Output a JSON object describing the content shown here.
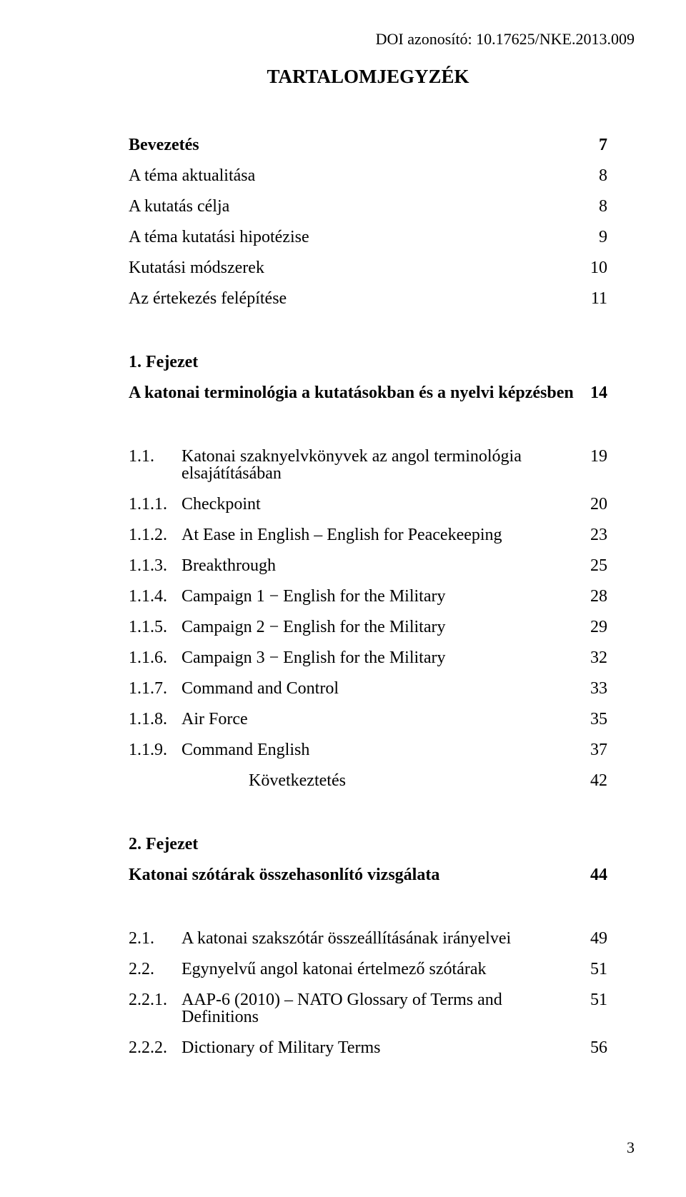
{
  "doi": "DOI azonosító: 10.17625/NKE.2013.009",
  "title": "TARTALOMJEGYZÉK",
  "footer_page": "3",
  "rows": [
    {
      "num": "",
      "label": "Bevezetés",
      "page": "7",
      "bold": true
    },
    {
      "num": "",
      "label": "A téma aktualitása",
      "page": "8"
    },
    {
      "num": "",
      "label": "A kutatás célja",
      "page": "8"
    },
    {
      "num": "",
      "label": "A téma kutatási hipotézise",
      "page": "9"
    },
    {
      "num": "",
      "label": "Kutatási módszerek",
      "page": "10"
    },
    {
      "num": "",
      "label": "Az értekezés felépítése",
      "page": "11"
    },
    {
      "spacer": "m"
    },
    {
      "num": "",
      "label": "1. Fejezet",
      "page": "",
      "bold": true
    },
    {
      "num": "",
      "label": "A katonai terminológia a kutatásokban és a nyelvi képzésben",
      "page": "14",
      "bold": true
    },
    {
      "spacer": "m"
    },
    {
      "num": "1.1.",
      "label": "Katonai szaknyelvkönyvek az angol terminológia elsajátításában",
      "page": "19"
    },
    {
      "num": "1.1.1.",
      "label": "Checkpoint",
      "page": "20"
    },
    {
      "num": "1.1.2.",
      "label": "At Ease in English – English for Peacekeeping",
      "page": "23"
    },
    {
      "num": "1.1.3.",
      "label": "Breakthrough",
      "page": "25"
    },
    {
      "num": "1.1.4.",
      "label": "Campaign 1 − English for the Military",
      "page": "28"
    },
    {
      "num": "1.1.5.",
      "label": "Campaign 2 − English for the Military",
      "page": "29"
    },
    {
      "num": "1.1.6.",
      "label": "Campaign 3 − English for the Military",
      "page": "32"
    },
    {
      "num": "1.1.7.",
      "label": "Command and Control",
      "page": "33"
    },
    {
      "num": "1.1.8.",
      "label": "Air Force",
      "page": "35"
    },
    {
      "num": "1.1.9.",
      "label": "Command English",
      "page": "37"
    },
    {
      "num": "",
      "label": "Következtetés",
      "page": "42",
      "indent": true
    },
    {
      "spacer": "m"
    },
    {
      "num": "",
      "label": "2. Fejezet",
      "page": "",
      "bold": true
    },
    {
      "num": "",
      "label": "Katonai szótárak összehasonlító vizsgálata",
      "page": "44",
      "bold": true
    },
    {
      "spacer": "m"
    },
    {
      "num": "2.1.",
      "label": "A katonai szakszótár összeállításának irányelvei",
      "page": "49"
    },
    {
      "num": "2.2.",
      "label": "Egynyelvű angol katonai értelmező szótárak",
      "page": "51"
    },
    {
      "num": "2.2.1.",
      "label": "AAP-6 (2010) – NATO Glossary of Terms and Definitions",
      "page": "51"
    },
    {
      "num": "2.2.2.",
      "label": "Dictionary of Military Terms",
      "page": "56"
    }
  ]
}
